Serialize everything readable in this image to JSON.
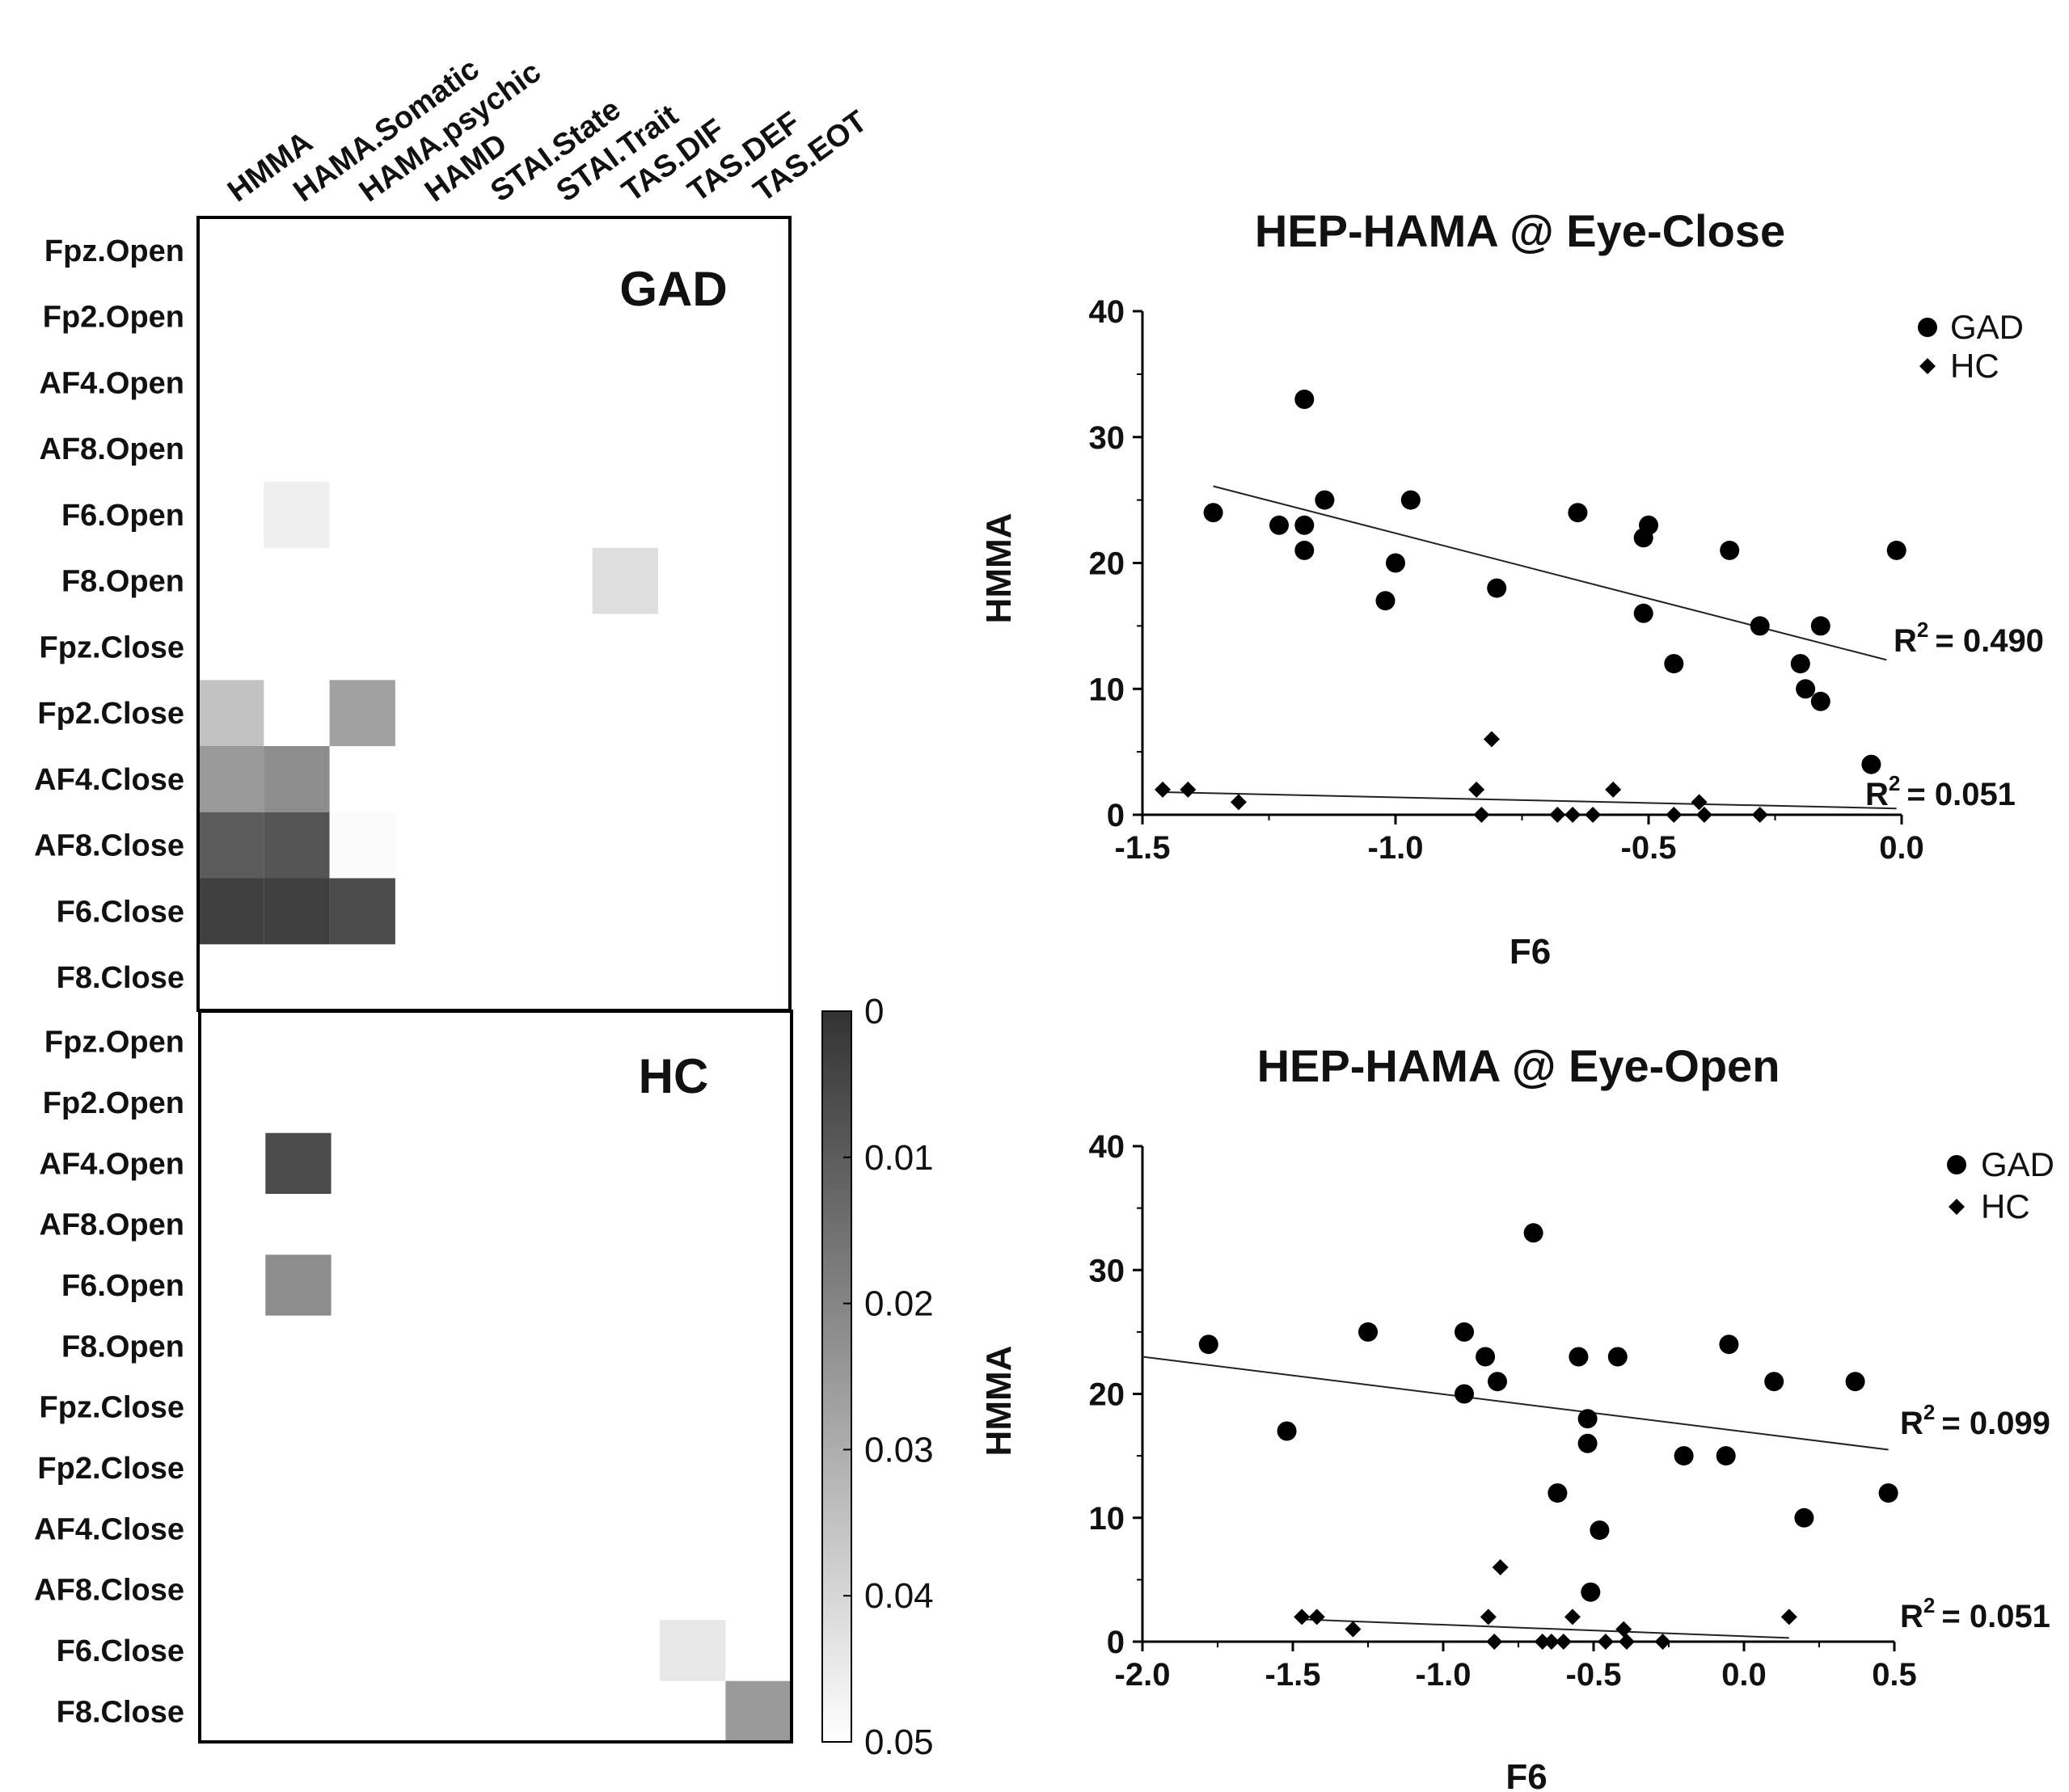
{
  "chart_data": [
    {
      "type": "heatmap",
      "title": "GAD",
      "columns": [
        "HMMA",
        "HAMA.Somatic",
        "HAMA.psychic",
        "HAMD",
        "STAI.State",
        "STAI.Trait",
        "TAS.DIF",
        "TAS.DEF",
        "TAS.EOT"
      ],
      "rows": [
        "Fpz.Open",
        "Fp2.Open",
        "AF4.Open",
        "AF8.Open",
        "F6.Open",
        "F8.Open",
        "Fpz.Close",
        "Fp2.Close",
        "AF4.Close",
        "AF8.Close",
        "F6.Close",
        "F8.Close"
      ],
      "cells": [
        {
          "row": "F6.Open",
          "col": "HAMA.Somatic",
          "p": 0.046
        },
        {
          "row": "F8.Open",
          "col": "TAS.DIF",
          "p": 0.042
        },
        {
          "row": "Fp2.Close",
          "col": "HMMA",
          "p": 0.035
        },
        {
          "row": "Fp2.Close",
          "col": "HAMA.psychic",
          "p": 0.027
        },
        {
          "row": "AF4.Close",
          "col": "HMMA",
          "p": 0.025
        },
        {
          "row": "AF4.Close",
          "col": "HAMA.Somatic",
          "p": 0.022
        },
        {
          "row": "AF8.Close",
          "col": "HMMA",
          "p": 0.01
        },
        {
          "row": "AF8.Close",
          "col": "HAMA.Somatic",
          "p": 0.008
        },
        {
          "row": "AF8.Close",
          "col": "HAMA.psychic",
          "p": 0.049
        },
        {
          "row": "F6.Close",
          "col": "HMMA",
          "p": 0.003
        },
        {
          "row": "F6.Close",
          "col": "HAMA.Somatic",
          "p": 0.003
        },
        {
          "row": "F6.Close",
          "col": "HAMA.psychic",
          "p": 0.006
        }
      ]
    },
    {
      "type": "heatmap",
      "title": "HC",
      "columns": [
        "HMMA",
        "HAMA.Somatic",
        "HAMA.psychic",
        "HAMD",
        "STAI.State",
        "STAI.Trait",
        "TAS.DIF",
        "TAS.DEF",
        "TAS.EOT"
      ],
      "rows": [
        "Fpz.Open",
        "Fp2.Open",
        "AF4.Open",
        "AF8.Open",
        "F6.Open",
        "F8.Open",
        "Fpz.Close",
        "Fp2.Close",
        "AF4.Close",
        "AF8.Close",
        "F6.Close",
        "F8.Close"
      ],
      "cells": [
        {
          "row": "AF4.Open",
          "col": "HAMA.Somatic",
          "p": 0.006
        },
        {
          "row": "F6.Open",
          "col": "HAMA.Somatic",
          "p": 0.022
        },
        {
          "row": "F6.Close",
          "col": "TAS.DEF",
          "p": 0.044
        },
        {
          "row": "F8.Close",
          "col": "TAS.EOT",
          "p": 0.025
        }
      ]
    },
    {
      "type": "colorbar",
      "range": [
        0,
        0.05
      ],
      "tick_labels": [
        "0",
        "0.01",
        "0.02",
        "0.03",
        "0.04",
        "0.05"
      ]
    },
    {
      "type": "scatter",
      "title": "HEP-HAMA @ Eye-Close",
      "xlabel": "F6",
      "ylabel": "HMMA",
      "xlim": [
        -1.5,
        0.0
      ],
      "ylim": [
        0,
        40
      ],
      "x_tick_labels": [
        "-1.5",
        "-1.0",
        "-0.5",
        "0.0"
      ],
      "y_tick_labels": [
        "0",
        "10",
        "20",
        "30",
        "40"
      ],
      "series": [
        {
          "name": "GAD",
          "marker": "circle",
          "points": [
            [
              -1.36,
              24
            ],
            [
              -1.18,
              33
            ],
            [
              -1.23,
              23
            ],
            [
              -1.18,
              23
            ],
            [
              -1.18,
              21
            ],
            [
              -1.14,
              25
            ],
            [
              -0.97,
              25
            ],
            [
              -1.0,
              20
            ],
            [
              -1.02,
              17
            ],
            [
              -0.8,
              18
            ],
            [
              -0.64,
              24
            ],
            [
              -0.5,
              23
            ],
            [
              -0.51,
              22
            ],
            [
              -0.51,
              16
            ],
            [
              -0.45,
              12
            ],
            [
              -0.34,
              21
            ],
            [
              -0.28,
              15
            ],
            [
              -0.2,
              12
            ],
            [
              -0.19,
              10
            ],
            [
              -0.16,
              9
            ],
            [
              -0.16,
              15
            ],
            [
              -0.01,
              21
            ],
            [
              -0.06,
              4
            ]
          ],
          "fit_line": [
            [
              -1.36,
              26.1
            ],
            [
              -0.03,
              12.3
            ]
          ],
          "r2_label": "R",
          "r2_value": "= 0.490"
        },
        {
          "name": "HC",
          "marker": "diamond",
          "points": [
            [
              -1.46,
              2
            ],
            [
              -1.41,
              2
            ],
            [
              -1.31,
              1
            ],
            [
              -0.84,
              2
            ],
            [
              -0.83,
              0
            ],
            [
              -0.81,
              6
            ],
            [
              -0.68,
              0
            ],
            [
              -0.65,
              0
            ],
            [
              -0.61,
              0
            ],
            [
              -0.57,
              2
            ],
            [
              -0.45,
              0
            ],
            [
              -0.4,
              1
            ],
            [
              -0.39,
              0
            ],
            [
              -0.28,
              0
            ]
          ],
          "fit_line": [
            [
              -1.46,
              1.8
            ],
            [
              -0.01,
              0.5
            ]
          ],
          "r2_label": "R",
          "r2_value": "= 0.051"
        }
      ]
    },
    {
      "type": "scatter",
      "title": "HEP-HAMA @ Eye-Open",
      "xlabel": "F6",
      "ylabel": "HMMA",
      "xlim": [
        -2.0,
        0.5
      ],
      "ylim": [
        0,
        40
      ],
      "x_tick_labels": [
        "-2.0",
        "-1.5",
        "-1.0",
        "-0.5",
        "0.0",
        "0.5"
      ],
      "y_tick_labels": [
        "0",
        "10",
        "20",
        "30",
        "40"
      ],
      "series": [
        {
          "name": "GAD",
          "marker": "circle",
          "points": [
            [
              -1.78,
              24
            ],
            [
              -1.52,
              17
            ],
            [
              -1.25,
              25
            ],
            [
              -0.93,
              25
            ],
            [
              -0.86,
              23
            ],
            [
              -0.82,
              21
            ],
            [
              -0.93,
              20
            ],
            [
              -0.7,
              33
            ],
            [
              -0.55,
              23
            ],
            [
              -0.42,
              23
            ],
            [
              -0.52,
              18
            ],
            [
              -0.52,
              16
            ],
            [
              -0.62,
              12
            ],
            [
              -0.48,
              9
            ],
            [
              -0.51,
              4
            ],
            [
              -0.2,
              15
            ],
            [
              -0.06,
              15
            ],
            [
              -0.05,
              24
            ],
            [
              0.1,
              21
            ],
            [
              0.2,
              10
            ],
            [
              0.37,
              21
            ],
            [
              0.48,
              12
            ]
          ],
          "fit_line": [
            [
              -2.0,
              23.0
            ],
            [
              0.48,
              15.5
            ]
          ],
          "r2_label": "R",
          "r2_value": "= 0.099"
        },
        {
          "name": "HC",
          "marker": "diamond",
          "points": [
            [
              -1.47,
              2
            ],
            [
              -1.42,
              2
            ],
            [
              -1.3,
              1
            ],
            [
              -0.85,
              2
            ],
            [
              -0.83,
              0
            ],
            [
              -0.81,
              6
            ],
            [
              -0.67,
              0
            ],
            [
              -0.64,
              0
            ],
            [
              -0.6,
              0
            ],
            [
              -0.57,
              2
            ],
            [
              -0.46,
              0
            ],
            [
              -0.4,
              1
            ],
            [
              -0.39,
              0
            ],
            [
              -0.27,
              0
            ],
            [
              0.15,
              2
            ]
          ],
          "fit_line": [
            [
              -1.47,
              1.8
            ],
            [
              0.15,
              0.3
            ]
          ],
          "r2_label": "R",
          "r2_value": "= 0.051"
        }
      ]
    }
  ]
}
